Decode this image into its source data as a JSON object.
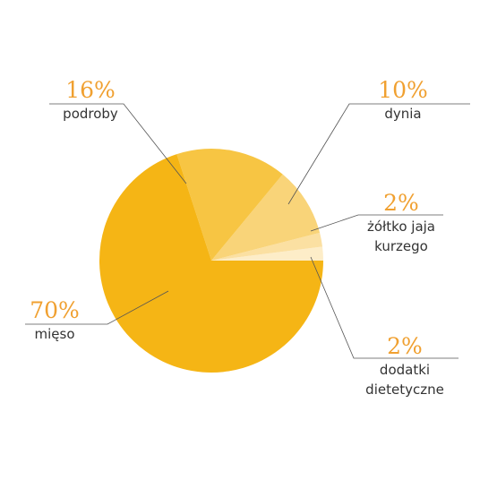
{
  "chart_data": {
    "type": "pie",
    "categories": [
      "dodatki dietetyczne",
      "żółtko jaja kurzego",
      "dynia",
      "podroby",
      "mięso"
    ],
    "values": [
      2,
      2,
      10,
      16,
      70
    ],
    "value_labels": [
      "2%",
      "2%",
      "10%",
      "16%",
      "70%"
    ],
    "colors": [
      "#fdedc8",
      "#fbe0a2",
      "#f9d479",
      "#f7c543",
      "#f5b515"
    ]
  }
}
